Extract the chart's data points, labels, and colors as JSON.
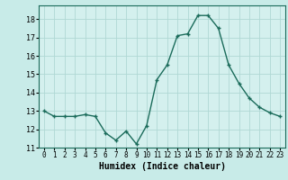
{
  "x": [
    0,
    1,
    2,
    3,
    4,
    5,
    6,
    7,
    8,
    9,
    10,
    11,
    12,
    13,
    14,
    15,
    16,
    17,
    18,
    19,
    20,
    21,
    22,
    23
  ],
  "y": [
    13.0,
    12.7,
    12.7,
    12.7,
    12.8,
    12.7,
    11.8,
    11.4,
    11.9,
    11.2,
    12.2,
    14.7,
    15.5,
    17.1,
    17.2,
    18.2,
    18.2,
    17.5,
    15.5,
    14.5,
    13.7,
    13.2,
    12.9,
    12.7
  ],
  "xlabel": "Humidex (Indice chaleur)",
  "ylim": [
    11,
    18.75
  ],
  "xlim": [
    -0.5,
    23.5
  ],
  "yticks": [
    11,
    12,
    13,
    14,
    15,
    16,
    17,
    18
  ],
  "xticks": [
    0,
    1,
    2,
    3,
    4,
    5,
    6,
    7,
    8,
    9,
    10,
    11,
    12,
    13,
    14,
    15,
    16,
    17,
    18,
    19,
    20,
    21,
    22,
    23
  ],
  "line_color": "#1a6b5a",
  "marker": "+",
  "bg_color": "#c8ebe8",
  "grid_color": "#b0d8d4",
  "axis_bg": "#d4f0ee",
  "border_color": "#1a6b5a"
}
